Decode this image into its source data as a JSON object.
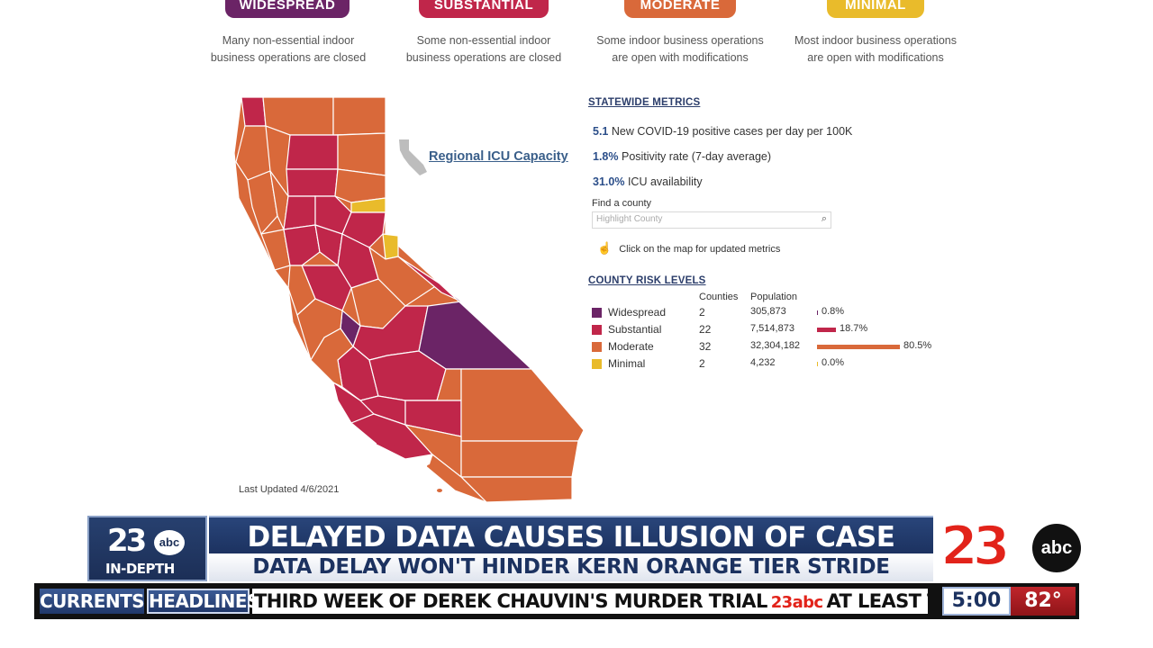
{
  "tiers": [
    {
      "label": "WIDESPREAD",
      "desc1": "Many non-essential indoor",
      "desc2": "business operations are closed",
      "color": "#6b2466"
    },
    {
      "label": "SUBSTANTIAL",
      "desc1": "Some non-essential indoor",
      "desc2": "business operations are closed",
      "color": "#c0264a"
    },
    {
      "label": "MODERATE",
      "desc1": "Some indoor business operations",
      "desc2": "are open with modifications",
      "color": "#d9693a"
    },
    {
      "label": "MINIMAL",
      "desc1": "Most indoor business operations",
      "desc2": "are open with modifications",
      "color": "#e9bb2b"
    }
  ],
  "icu_link": "Regional ICU Capacity",
  "last_updated": "Last Updated 4/6/2021",
  "statewide": {
    "title": "STATEWIDE METRICS",
    "cases_value": "5.1",
    "cases_label": "New COVID-19 positive cases per day per 100K",
    "positivity_value": "1.8%",
    "positivity_label": "Positivity rate (7-day average)",
    "icu_value": "31.0%",
    "icu_label": "ICU availability"
  },
  "find_county": {
    "label": "Find a county",
    "placeholder": "Highlight County"
  },
  "hint": "Click on the map for updated metrics",
  "risk_levels": {
    "title": "COUNTY RISK LEVELS",
    "col_counties": "Counties",
    "col_population": "Population",
    "rows": [
      {
        "name": "Widespread",
        "counties": "2",
        "population": "305,873",
        "pct": "0.8%",
        "share": 0.008,
        "color": "#6b2466"
      },
      {
        "name": "Substantial",
        "counties": "22",
        "population": "7,514,873",
        "pct": "18.7%",
        "share": 0.187,
        "color": "#c0264a"
      },
      {
        "name": "Moderate",
        "counties": "32",
        "population": "32,304,182",
        "pct": "80.5%",
        "share": 0.805,
        "color": "#d9693a"
      },
      {
        "name": "Minimal",
        "counties": "2",
        "population": "4,232",
        "pct": "0.0%",
        "share": 0.0,
        "color": "#e9bb2b"
      }
    ]
  },
  "lower_third": {
    "logo_number": "23",
    "logo_abc": "abc",
    "logo_tag": "IN-DEPTH",
    "headline": "DELAYED DATA CAUSES ILLUSION OF CASE INCREASE",
    "subheadline": "DATA DELAY WON'T HINDER KERN ORANGE TIER STRIDE"
  },
  "ticker": {
    "currents": "CURRENTS",
    "headlines": "HEADLINES",
    "text1": "THIRD WEEK OF DEREK CHAUVIN'S MURDER TRIAL",
    "mini_logo": "23abc",
    "text2": "AT LEAST THREE OI",
    "time": "5:00",
    "temp": "82°"
  }
}
